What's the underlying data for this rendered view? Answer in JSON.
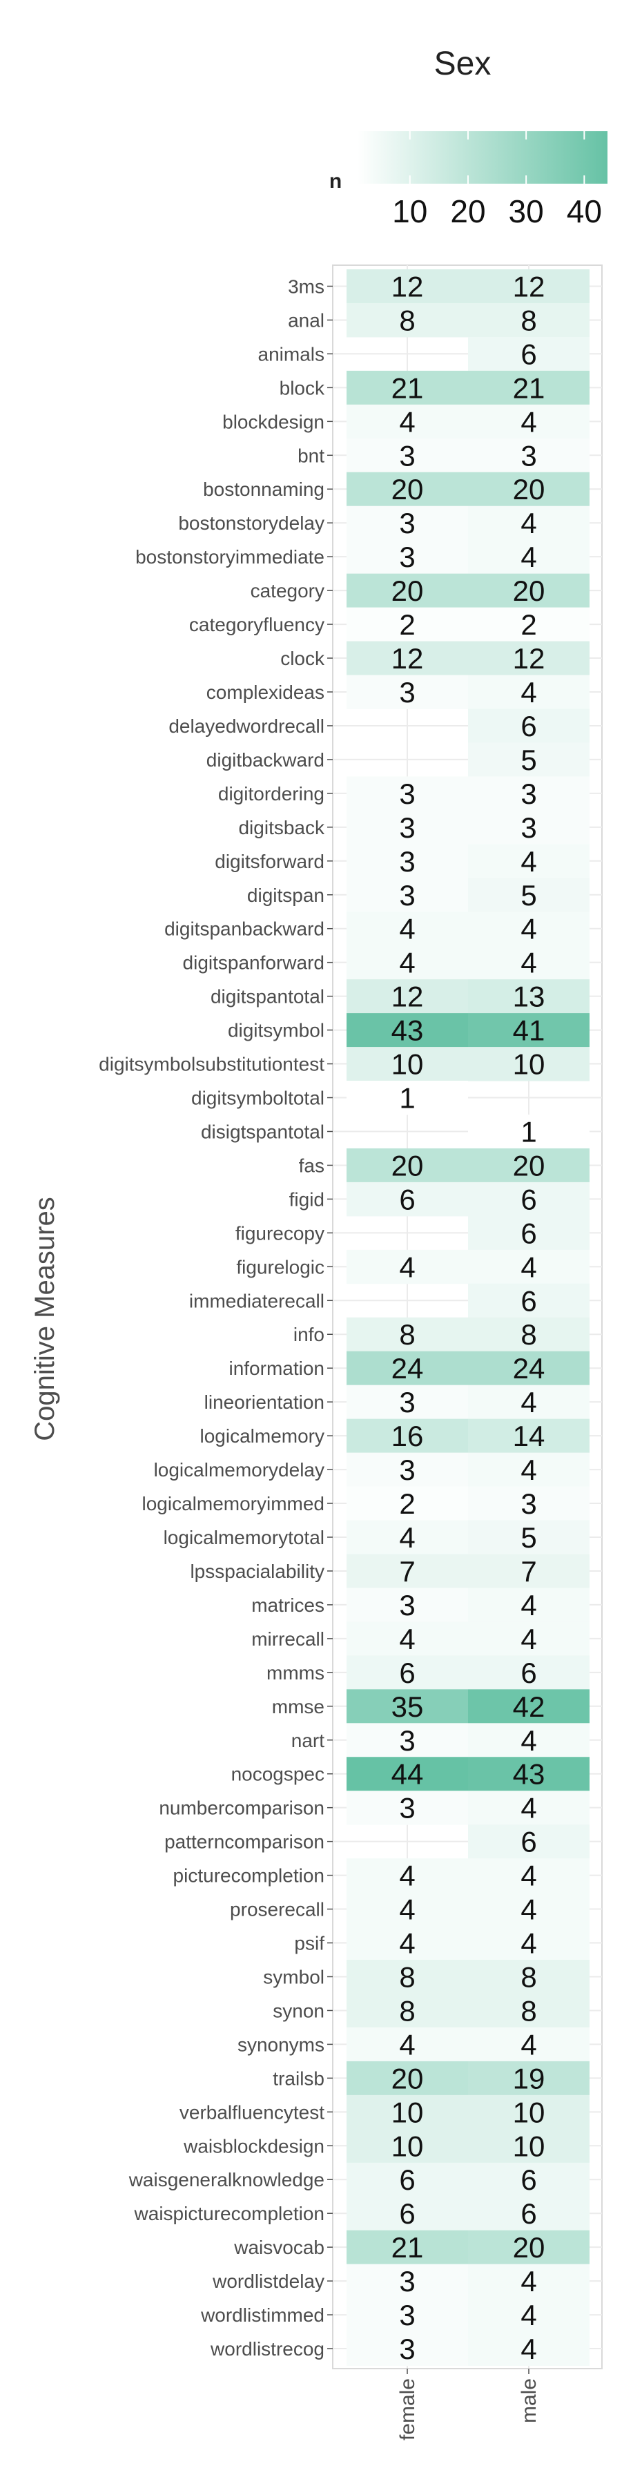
{
  "chart_data": {
    "type": "heatmap",
    "title": "Sex",
    "xlabel": "",
    "ylabel": "Cognitive Measures",
    "legend": {
      "title": "n",
      "placement": "top",
      "ticks": [
        10,
        20,
        30,
        40
      ],
      "range": [
        1,
        44
      ],
      "color_low": "#ffffff",
      "color_high": "#66c2a5"
    },
    "columns": [
      "female",
      "male"
    ],
    "rows": [
      "3ms",
      "anal",
      "animals",
      "block",
      "blockdesign",
      "bnt",
      "bostonnaming",
      "bostonstorydelay",
      "bostonstoryimmediate",
      "category",
      "categoryfluency",
      "clock",
      "complexideas",
      "delayedwordrecall",
      "digitbackward",
      "digitordering",
      "digitsback",
      "digitsforward",
      "digitspan",
      "digitspanbackward",
      "digitspanforward",
      "digitspantotal",
      "digitsymbol",
      "digitsymbolsubstitutiontest",
      "digitsymboltotal",
      "disigtspantotal",
      "fas",
      "figid",
      "figurecopy",
      "figurelogic",
      "immediaterecall",
      "info",
      "information",
      "lineorientation",
      "logicalmemory",
      "logicalmemorydelay",
      "logicalmemoryimmed",
      "logicalmemorytotal",
      "lpsspacialability",
      "matrices",
      "mirrecall",
      "mmms",
      "mmse",
      "nart",
      "nocogspec",
      "numbercomparison",
      "patterncomparison",
      "picturecompletion",
      "proserecall",
      "psif",
      "symbol",
      "synon",
      "synonyms",
      "trailsb",
      "verbalfluencytest",
      "waisblockdesign",
      "waisgeneralknowledge",
      "waispicturecompletion",
      "waisvocab",
      "wordlistdelay",
      "wordlistimmed",
      "wordlistrecog"
    ],
    "values": [
      [
        12,
        12
      ],
      [
        8,
        8
      ],
      [
        null,
        6
      ],
      [
        21,
        21
      ],
      [
        4,
        4
      ],
      [
        3,
        3
      ],
      [
        20,
        20
      ],
      [
        3,
        4
      ],
      [
        3,
        4
      ],
      [
        20,
        20
      ],
      [
        2,
        2
      ],
      [
        12,
        12
      ],
      [
        3,
        4
      ],
      [
        null,
        6
      ],
      [
        null,
        5
      ],
      [
        3,
        3
      ],
      [
        3,
        3
      ],
      [
        3,
        4
      ],
      [
        3,
        5
      ],
      [
        4,
        4
      ],
      [
        4,
        4
      ],
      [
        12,
        13
      ],
      [
        43,
        41
      ],
      [
        10,
        10
      ],
      [
        1,
        null
      ],
      [
        null,
        1
      ],
      [
        20,
        20
      ],
      [
        6,
        6
      ],
      [
        null,
        6
      ],
      [
        4,
        4
      ],
      [
        null,
        6
      ],
      [
        8,
        8
      ],
      [
        24,
        24
      ],
      [
        3,
        4
      ],
      [
        16,
        14
      ],
      [
        3,
        4
      ],
      [
        2,
        3
      ],
      [
        4,
        5
      ],
      [
        7,
        7
      ],
      [
        3,
        4
      ],
      [
        4,
        4
      ],
      [
        6,
        6
      ],
      [
        35,
        42
      ],
      [
        3,
        4
      ],
      [
        44,
        43
      ],
      [
        3,
        4
      ],
      [
        null,
        6
      ],
      [
        4,
        4
      ],
      [
        4,
        4
      ],
      [
        4,
        4
      ],
      [
        8,
        8
      ],
      [
        8,
        8
      ],
      [
        4,
        4
      ],
      [
        20,
        19
      ],
      [
        10,
        10
      ],
      [
        10,
        10
      ],
      [
        6,
        6
      ],
      [
        6,
        6
      ],
      [
        21,
        20
      ],
      [
        3,
        4
      ],
      [
        3,
        4
      ],
      [
        3,
        4
      ]
    ]
  }
}
